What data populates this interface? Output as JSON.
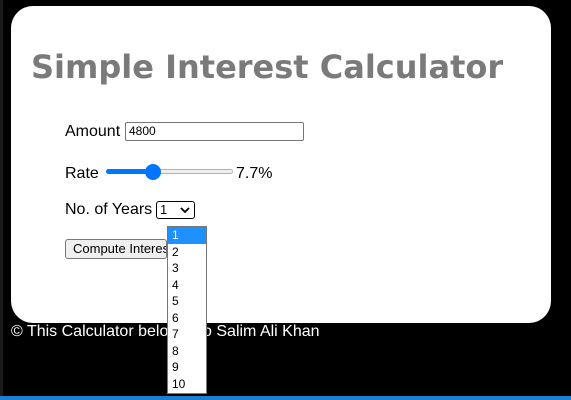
{
  "page": {
    "title": "Simple Interest Calculator",
    "footer": "© This Calculator belongs to Salim Ali Khan"
  },
  "form": {
    "amount_label": "Amount",
    "amount_value": "4800",
    "rate_label": "Rate",
    "rate_value": 7.7,
    "rate_min": 1,
    "rate_max": 20,
    "rate_display": "7.7%",
    "years_label": "No. of Years",
    "years_selected": "1",
    "years_options": [
      "1",
      "2",
      "3",
      "4",
      "5",
      "6",
      "7",
      "8",
      "9",
      "10"
    ],
    "compute_label": "Compute Interest"
  },
  "colors": {
    "accent": "#0075ff",
    "title": "#7a7a7a",
    "highlight": "#1e90ff"
  },
  "icons": {
    "select_arrow": "chevron-down-icon"
  }
}
